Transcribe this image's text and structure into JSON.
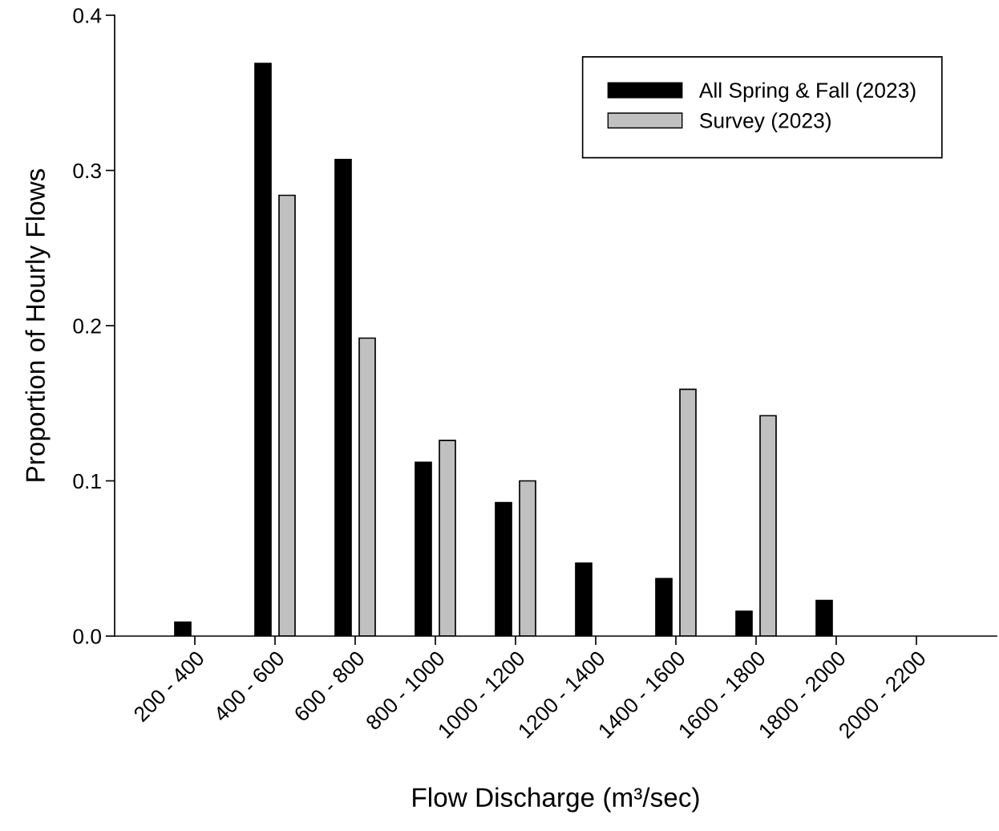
{
  "chart_data": {
    "type": "bar",
    "xlabel": "Flow Discharge (m³/sec)",
    "ylabel": "Proportion of Hourly Flows",
    "categories": [
      "200 - 400",
      "400 - 600",
      "600 - 800",
      "800 - 1000",
      "1000 - 1200",
      "1200 - 1400",
      "1400 - 1600",
      "1600 - 1800",
      "1800 - 2000",
      "2000 - 2200"
    ],
    "series": [
      {
        "name": "All Spring & Fall (2023)",
        "color": "#000000",
        "values": [
          0.009,
          0.369,
          0.307,
          0.112,
          0.086,
          0.047,
          0.037,
          0.016,
          0.023,
          0
        ]
      },
      {
        "name": "Survey (2023)",
        "color": "#c0c0c0",
        "values": [
          0,
          0.284,
          0.192,
          0.126,
          0.1,
          0,
          0.159,
          0.142,
          0,
          0
        ]
      }
    ],
    "ylim": [
      0,
      0.4
    ],
    "yticks": [
      {
        "value": 0,
        "label": "0.0"
      },
      0.1,
      0.2,
      0.3,
      0.4
    ],
    "legend": "top right",
    "grid": false
  }
}
